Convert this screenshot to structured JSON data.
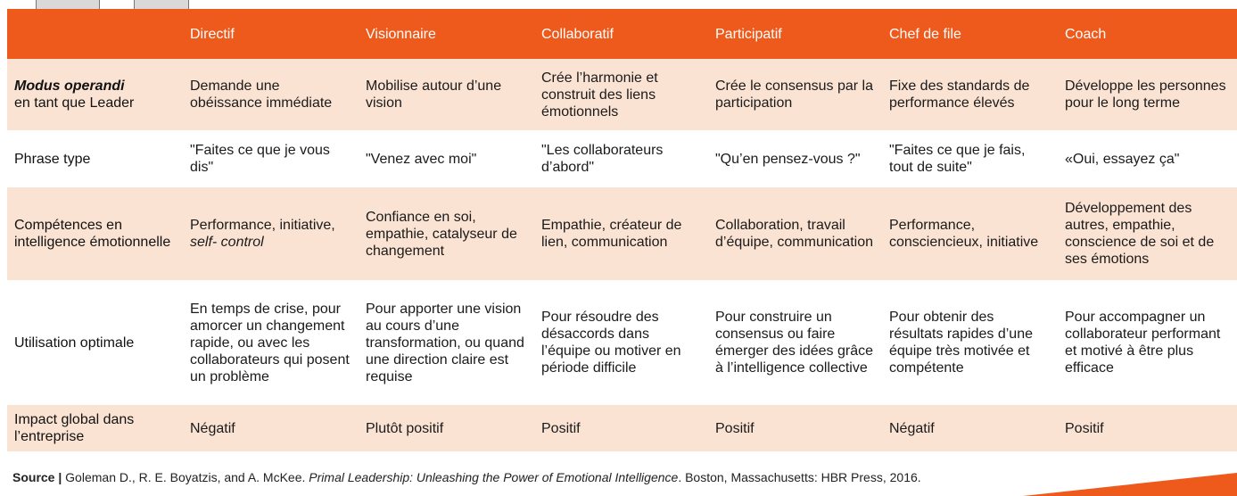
{
  "table": {
    "headers": [
      "",
      "Directif",
      "Visionnaire",
      "Collaboratif",
      "Participatif",
      "Chef de file",
      "Coach"
    ],
    "rows": [
      {
        "label_line1": "Modus operandi",
        "label_line2": "en tant que Leader",
        "cells": [
          "Demande une obéissance immédiate",
          "Mobilise autour d’une vision",
          "Crée l’harmonie et construit des liens émotionnels",
          "Crée le consensus par la participation",
          "Fixe des standards de performance élevés",
          "Développe les personnes pour le long terme"
        ]
      },
      {
        "label": "Phrase type",
        "cells": [
          "\"Faites ce que je vous dis\"",
          "\"Venez avec moi\"",
          "\"Les collaborateurs d’abord\"",
          "\"Qu’en pensez-vous ?\"",
          "\"Faites ce que je fais, tout de suite\"",
          "«Oui, essayez ça\""
        ]
      },
      {
        "label": "Compétences en intelligence émotionnelle",
        "cells_first": "Performance, initiative,",
        "cells_first_italic": "self- control",
        "cells": [
          "Confiance en soi, empathie, catalyseur de changement",
          "Empathie, créateur de lien, communication",
          "Collaboration, travail d’équipe, communication",
          "Performance, consciencieux, initiative",
          "Développement des autres, empathie, conscience de soi et de ses émotions"
        ]
      },
      {
        "label": "Utilisation optimale",
        "cells": [
          "En temps de crise, pour amorcer un changement rapide, ou avec les collaborateurs qui posent un problème",
          "Pour apporter une vision au cours d’une transformation, ou quand une direction claire est requise",
          "Pour résoudre des désaccords dans l’équipe ou motiver en période difficile",
          "Pour construire un consensus ou faire émerger des idées grâce à l’intelligence collective",
          "Pour obtenir des résultats rapides d’une équipe très motivée et compétente",
          "Pour accompagner un collaborateur performant et motivé à être plus efficace"
        ]
      },
      {
        "label": "Impact global dans l’entreprise",
        "cells": [
          "Négatif",
          "Plutôt positif",
          "Positif",
          "Positif",
          "Négatif",
          "Positif"
        ]
      }
    ]
  },
  "source": {
    "prefix": "Source |",
    "authors": " Goleman D., R. E. Boyatzis, and A. McKee. ",
    "title": "Primal Leadership: Unleashing the Power of Emotional Intelligence",
    "publisher": ". Boston, Massachusetts: HBR Press, 2016."
  },
  "colors": {
    "accent": "#ee5a1c",
    "row_tint": "#fbe3d3"
  }
}
